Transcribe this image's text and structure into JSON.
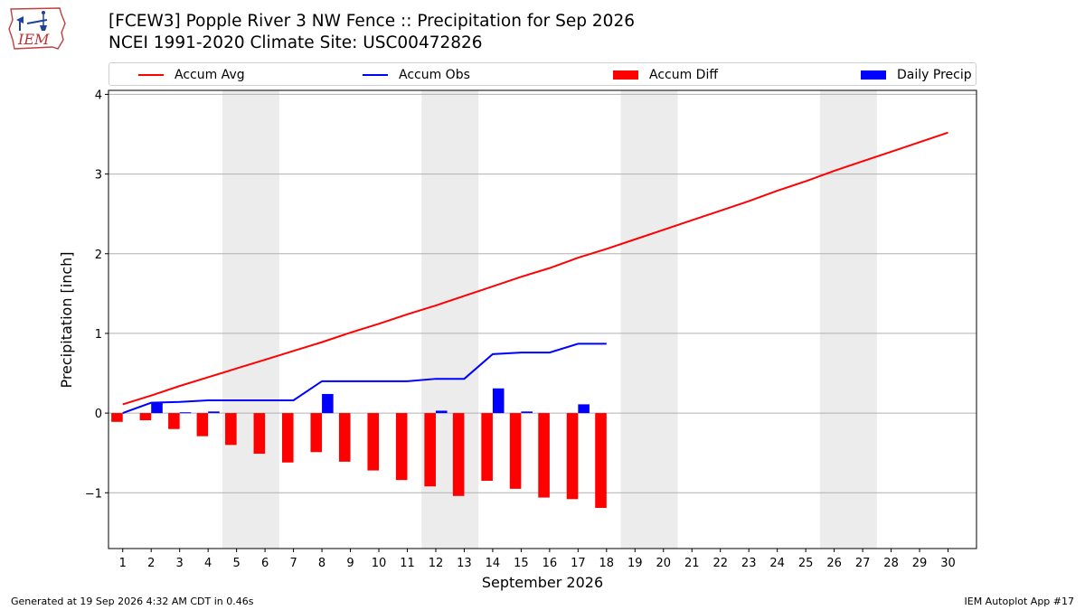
{
  "header": {
    "logo_text": "IEM",
    "title_line1": "[FCEW3] Popple River 3 NW Fence :: Precipitation for Sep 2026",
    "title_line2": "NCEI 1991-2020 Climate Site: USC00472826"
  },
  "legend": [
    {
      "label": "Accum Avg",
      "kind": "line",
      "color": "#ff0000"
    },
    {
      "label": "Accum Obs",
      "kind": "line",
      "color": "#0000ff"
    },
    {
      "label": "Accum Diff",
      "kind": "box",
      "color": "#ff0000"
    },
    {
      "label": "Daily Precip",
      "kind": "box",
      "color": "#0000ff"
    }
  ],
  "chart_data": {
    "type": "bar",
    "xlabel": "September 2026",
    "ylabel": "Precipitation [inch]",
    "ylim": [
      -1.7,
      4.05
    ],
    "xlim": [
      0.5,
      31.0
    ],
    "yticks": [
      -1,
      0,
      1,
      2,
      3,
      4
    ],
    "ytick_labels": [
      "−1",
      "0",
      "1",
      "2",
      "3",
      "4"
    ],
    "categories": [
      1,
      2,
      3,
      4,
      5,
      6,
      7,
      8,
      9,
      10,
      11,
      12,
      13,
      14,
      15,
      16,
      17,
      18,
      19,
      20,
      21,
      22,
      23,
      24,
      25,
      26,
      27,
      28,
      29,
      30
    ],
    "weekend_bands": [
      [
        5,
        6
      ],
      [
        12,
        13
      ],
      [
        19,
        20
      ],
      [
        26,
        27
      ]
    ],
    "grid": "horizontal",
    "series": [
      {
        "name": "Accum Avg",
        "type": "line",
        "color": "#ff0000",
        "x": [
          1,
          2,
          3,
          4,
          5,
          6,
          7,
          8,
          9,
          10,
          11,
          12,
          13,
          14,
          15,
          16,
          17,
          18,
          19,
          20,
          21,
          22,
          23,
          24,
          25,
          26,
          27,
          28,
          29,
          30
        ],
        "values": [
          0.11,
          0.22,
          0.34,
          0.45,
          0.56,
          0.67,
          0.78,
          0.89,
          1.01,
          1.12,
          1.24,
          1.35,
          1.47,
          1.59,
          1.71,
          1.82,
          1.95,
          2.06,
          2.18,
          2.3,
          2.42,
          2.54,
          2.66,
          2.79,
          2.91,
          3.04,
          3.16,
          3.28,
          3.4,
          3.52
        ]
      },
      {
        "name": "Accum Obs",
        "type": "line",
        "color": "#0000ff",
        "x": [
          1,
          2,
          3,
          4,
          5,
          6,
          7,
          8,
          9,
          10,
          11,
          12,
          13,
          14,
          15,
          16,
          17,
          18
        ],
        "values": [
          0.0,
          0.13,
          0.14,
          0.16,
          0.16,
          0.16,
          0.16,
          0.4,
          0.4,
          0.4,
          0.4,
          0.43,
          0.43,
          0.74,
          0.76,
          0.76,
          0.87,
          0.87
        ]
      },
      {
        "name": "Accum Diff",
        "type": "bar",
        "color": "#ff0000",
        "offset": -0.2,
        "x": [
          1,
          2,
          3,
          4,
          5,
          6,
          7,
          8,
          9,
          10,
          11,
          12,
          13,
          14,
          15,
          16,
          17,
          18
        ],
        "values": [
          -0.11,
          -0.09,
          -0.2,
          -0.29,
          -0.4,
          -0.51,
          -0.62,
          -0.49,
          -0.61,
          -0.72,
          -0.84,
          -0.92,
          -1.04,
          -0.85,
          -0.95,
          -1.06,
          -1.08,
          -1.19
        ]
      },
      {
        "name": "Daily Precip",
        "type": "bar",
        "color": "#0000ff",
        "offset": 0.2,
        "x": [
          1,
          2,
          3,
          4,
          5,
          6,
          7,
          8,
          9,
          10,
          11,
          12,
          13,
          14,
          15,
          16,
          17,
          18
        ],
        "values": [
          0.0,
          0.13,
          0.01,
          0.02,
          0.0,
          0.0,
          0.0,
          0.24,
          0.0,
          0.0,
          0.0,
          0.03,
          0.0,
          0.31,
          0.02,
          0.0,
          0.11,
          0.0
        ]
      }
    ]
  },
  "footer": {
    "generated": "Generated at 19 Sep 2026 4:32 AM CDT in 0.46s",
    "app": "IEM Autoplot App #17"
  }
}
